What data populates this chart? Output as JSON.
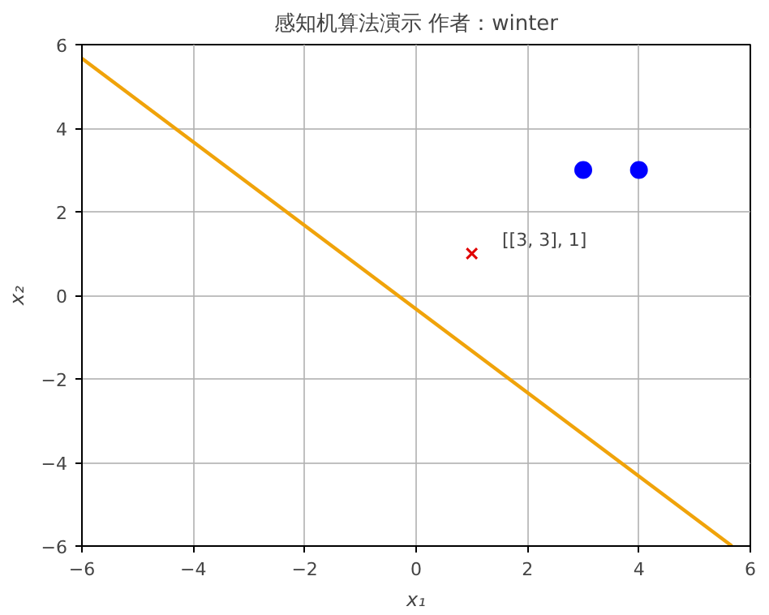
{
  "chart_data": {
    "type": "scatter",
    "title": "感知机算法演示 作者：winter",
    "xlabel": "x₁",
    "ylabel": "x₂",
    "xlim": [
      -6,
      6
    ],
    "ylim": [
      -6,
      6
    ],
    "xticks": [
      -6,
      -4,
      -2,
      0,
      2,
      4,
      6
    ],
    "yticks": [
      -6,
      -4,
      -2,
      0,
      2,
      4,
      6
    ],
    "grid": true,
    "series": [
      {
        "marker": "circle",
        "color": "#0000ff",
        "x": [
          3,
          4
        ],
        "values": [
          3,
          3
        ]
      },
      {
        "marker": "cross",
        "color": "#e00000",
        "x": [
          1
        ],
        "values": [
          1
        ]
      },
      {
        "type": "line",
        "marker": "none",
        "color": "#f0a30a",
        "x": [
          -6,
          5.67
        ],
        "values": [
          5.67,
          -6
        ]
      }
    ],
    "annotations": [
      "[[3, 3], 1]"
    ]
  }
}
